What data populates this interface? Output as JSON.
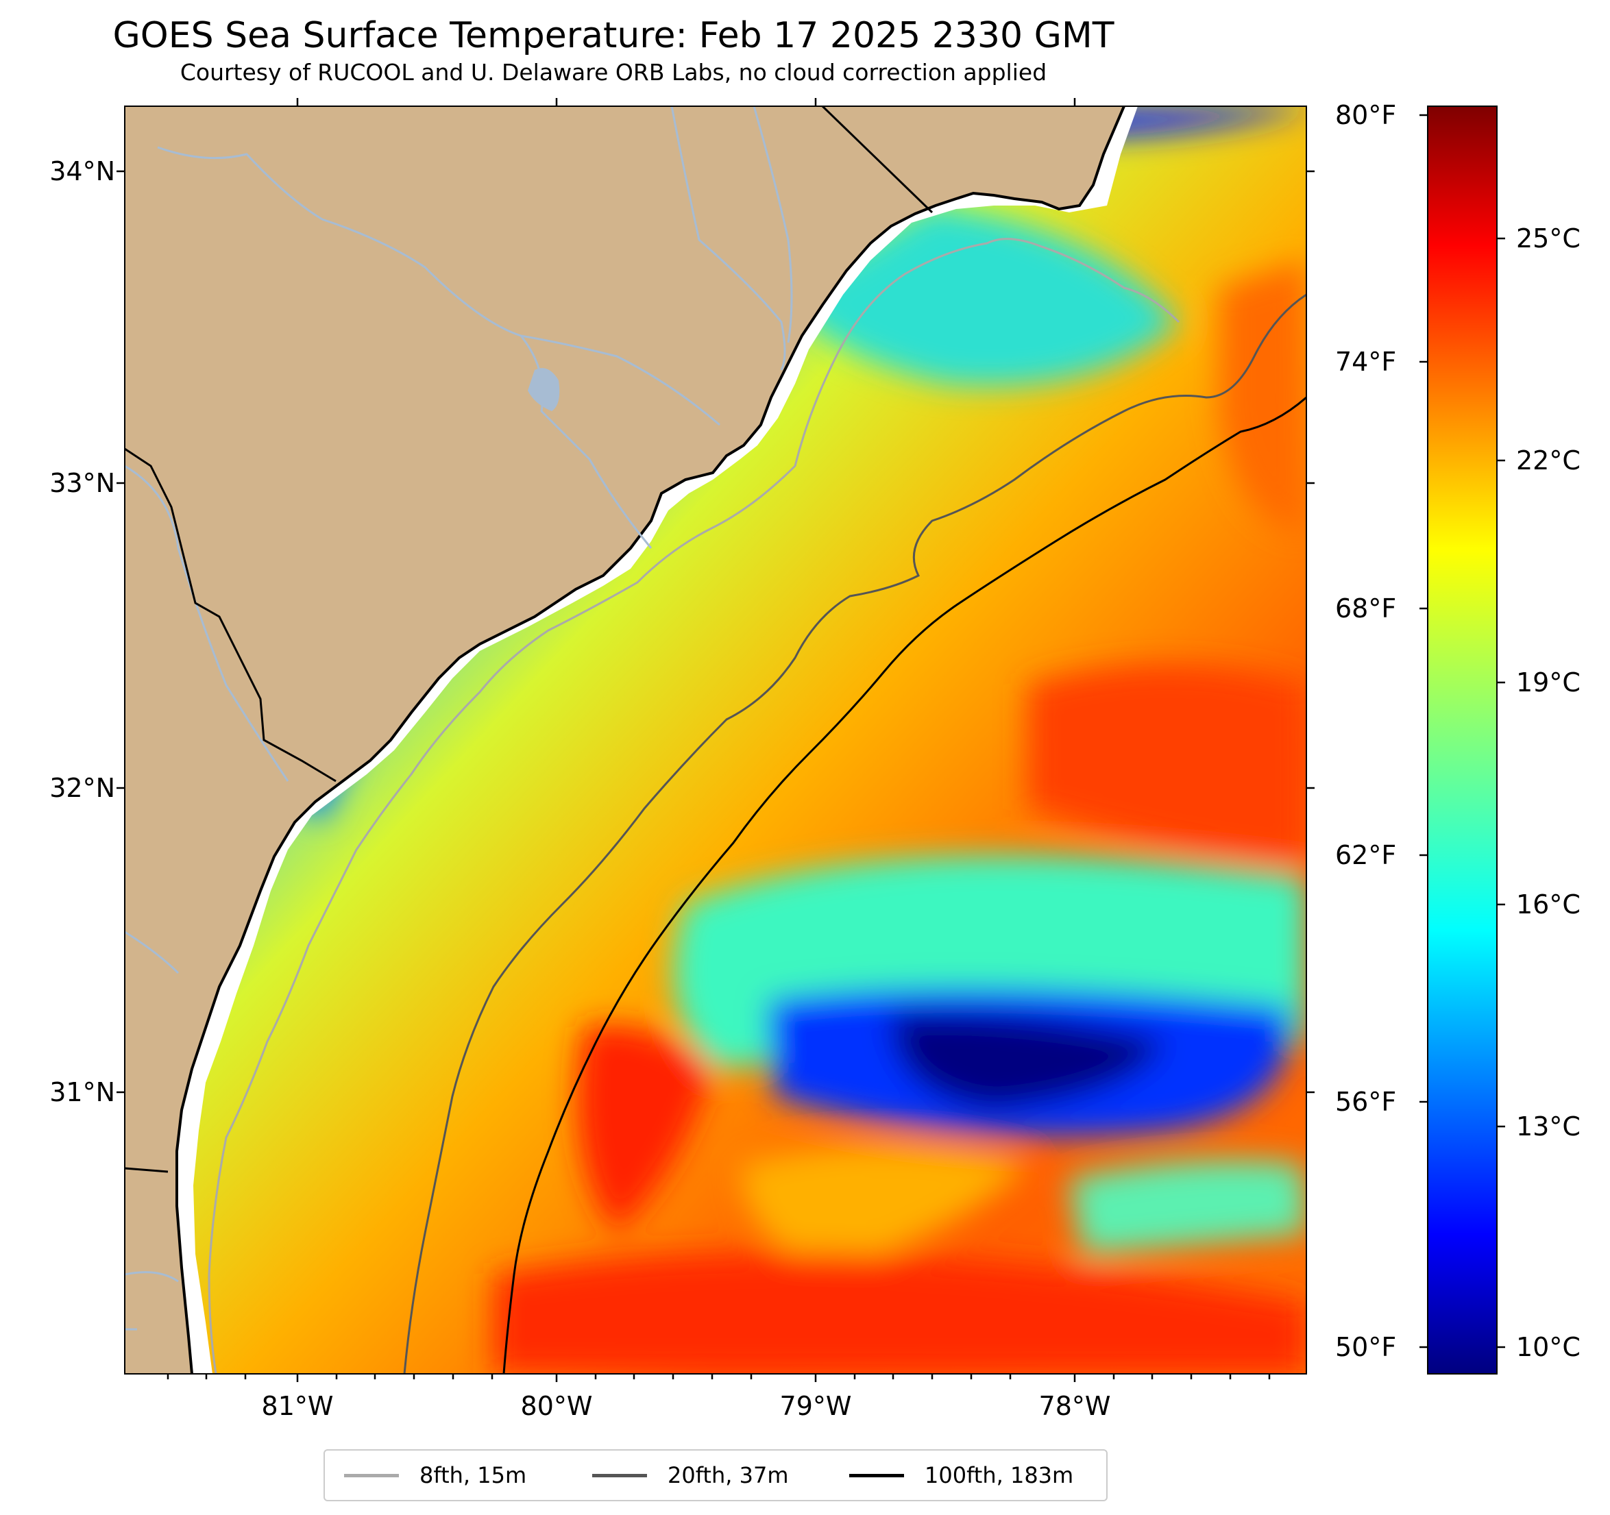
{
  "title": "GOES Sea Surface Temperature: Feb 17 2025 2330 GMT",
  "subtitle": "Courtesy of RUCOOL and U. Delaware ORB Labs, no cloud correction applied",
  "lat_labels": [
    "34°N",
    "33°N",
    "32°N",
    "31°N"
  ],
  "lon_labels": [
    "81°W",
    "80°W",
    "79°W",
    "78°W"
  ],
  "colorbar": {
    "fahrenheit_labels": [
      "80°F",
      "74°F",
      "68°F",
      "62°F",
      "56°F",
      "50°F"
    ],
    "celsius_labels": [
      "25°C",
      "22°C",
      "19°C",
      "16°C",
      "13°C",
      "10°C"
    ],
    "colormap": "jet",
    "range_c": [
      9.5,
      26.8
    ]
  },
  "legend": [
    {
      "label": "8fth, 15m",
      "color": "#aaaaaa"
    },
    {
      "label": "20fth, 37m",
      "color": "#555555"
    },
    {
      "label": "100fth, 183m",
      "color": "#000000"
    }
  ],
  "colors": {
    "land": "#d2b48c",
    "river": "#a7bcd3",
    "coastline": "#000000",
    "nodata": "#ffffff"
  }
}
